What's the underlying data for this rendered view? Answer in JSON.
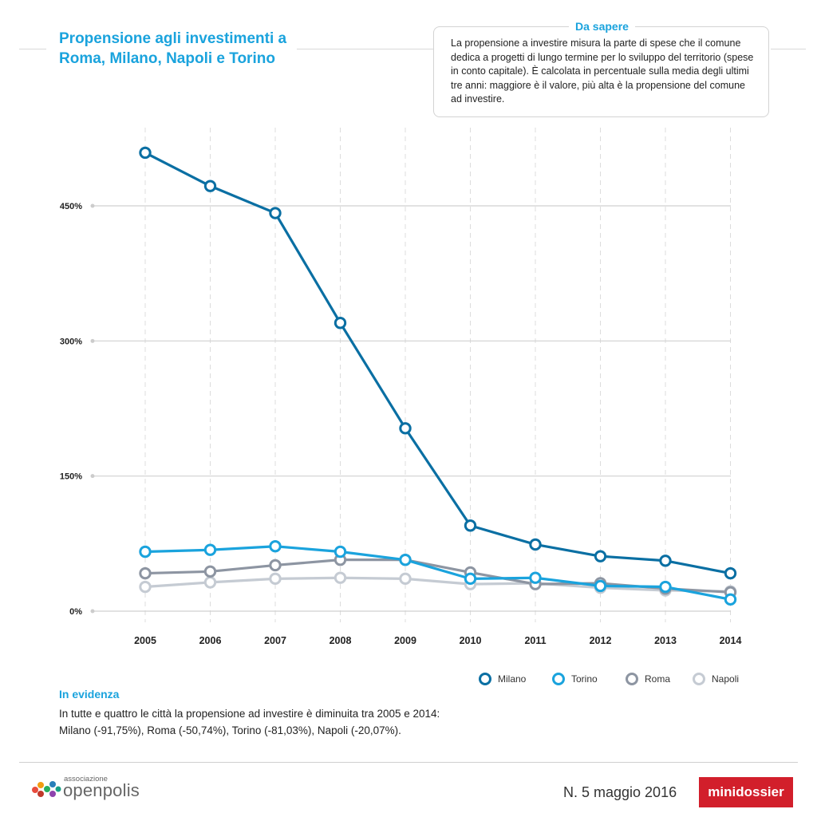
{
  "header": {
    "title": "Propensione agli investimenti a Roma, Milano, Napoli e Torino",
    "info_label": "Da sapere",
    "info_text": "La propensione a investire misura la parte di spese che il comune dedica a progetti di lungo termine per lo sviluppo del territorio (spese in conto capitale). È calcolata in percentuale sulla media degli ultimi tre anni: maggiore è il valore, più alta è la propensione del comune ad investire."
  },
  "chart_data": {
    "type": "line",
    "x": [
      "2005",
      "2006",
      "2007",
      "2008",
      "2009",
      "2010",
      "2011",
      "2012",
      "2013",
      "2014"
    ],
    "yticks": [
      "0%",
      "150%",
      "300%",
      "450%"
    ],
    "ytick_values": [
      0,
      150,
      300,
      450
    ],
    "ylim": [
      0,
      520
    ],
    "grid": "horizontal solid, vertical dashed",
    "legend_position": "bottom-right",
    "series": [
      {
        "name": "Napoli",
        "color": "#c5cbd3",
        "values": [
          27,
          32,
          36,
          37,
          36,
          30,
          31,
          26,
          23,
          22
        ]
      },
      {
        "name": "Roma",
        "color": "#8d95a2",
        "values": [
          42,
          44,
          51,
          57,
          57,
          43,
          30,
          31,
          25,
          21
        ]
      },
      {
        "name": "Torino",
        "color": "#1aa3dd",
        "values": [
          66,
          68,
          72,
          66,
          57,
          36,
          37,
          28,
          27,
          13
        ]
      },
      {
        "name": "Milano",
        "color": "#0a6fa3",
        "values": [
          509,
          472,
          442,
          320,
          203,
          95,
          74,
          61,
          56,
          42
        ]
      }
    ]
  },
  "legend": {
    "items": [
      {
        "label": "Milano",
        "color": "#0a6fa3"
      },
      {
        "label": "Torino",
        "color": "#1aa3dd"
      },
      {
        "label": "Roma",
        "color": "#8d95a2"
      },
      {
        "label": "Napoli",
        "color": "#c5cbd3"
      }
    ]
  },
  "evidence": {
    "title": "In evidenza",
    "line1": "In tutte e quattro le città la propensione ad investire è diminuita tra 2005 e 2014:",
    "line2": "Milano (-91,75%), Roma (-50,74%), Torino (-81,03%), Napoli (-20,07%)."
  },
  "footer": {
    "logo_small": "associazione",
    "logo_big": "openpolis",
    "issue": "N. 5 maggio 2016",
    "badge": "minidossier"
  }
}
